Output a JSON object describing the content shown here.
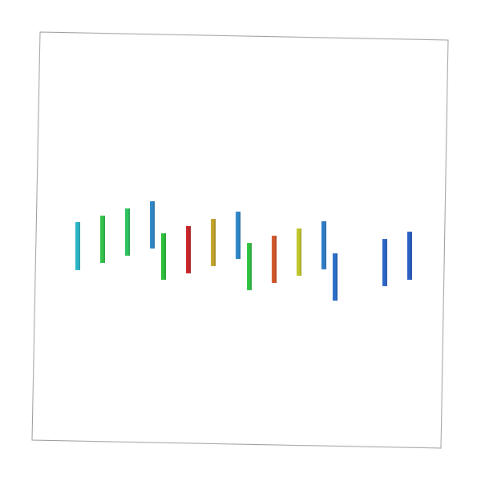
{
  "scene": {
    "background": "#ffffff",
    "frame_color": "#9a9a9a",
    "bars": [
      {
        "color": "#2bb5c7"
      },
      {
        "color": "#34c24a"
      },
      {
        "color": "#2ec460"
      },
      {
        "color": "#2f86c6"
      },
      {
        "color": "#2dc03b"
      },
      {
        "color": "#c8262a"
      },
      {
        "color": "#c3a22a"
      },
      {
        "color": "#2f86c6"
      },
      {
        "color": "#2fc241"
      },
      {
        "color": "#d0562a"
      },
      {
        "color": "#c0c52a"
      },
      {
        "color": "#2d7bc6"
      },
      {
        "color": "#2b6ec7"
      },
      {
        "color": "#2c66c6"
      },
      {
        "color": "#2a5fc4"
      }
    ]
  }
}
